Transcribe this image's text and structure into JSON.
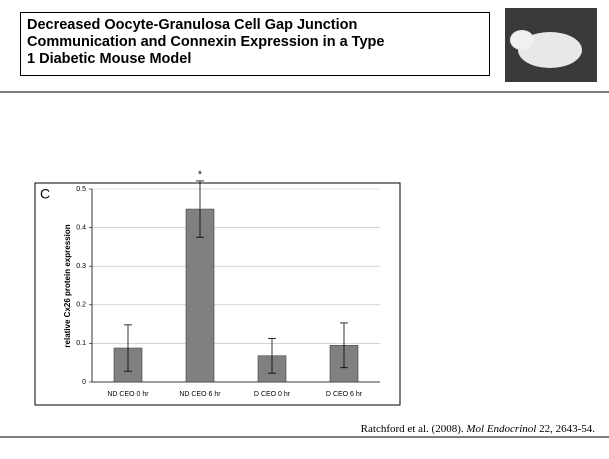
{
  "slide": {
    "title_lines": [
      "Decreased Oocyte-Granulosa Cell Gap Junction",
      "Communication and Connexin Expression in a Type",
      "1 Diabetic Mouse Model"
    ],
    "citation": [
      "Ratchford et al. (2008). ",
      "Mol Endocrinol",
      " 22, 2643-54."
    ]
  },
  "chart_data": {
    "type": "bar",
    "panel_label": "C",
    "y_label": "relative Cx26 protein expression",
    "categories": [
      "ND CEO 0 hr",
      "ND CEO 6 hr",
      "D CEO 0 hr",
      "D CEO 6 hr"
    ],
    "values": [
      0.088,
      0.448,
      0.068,
      0.095
    ],
    "errors": [
      0.06,
      0.073,
      0.045,
      0.058
    ],
    "annotations": [
      null,
      "*",
      null,
      null
    ],
    "color": "#808080",
    "ylim": [
      0,
      0.5
    ],
    "yticks": [
      0,
      0.1,
      0.2,
      0.3,
      0.4,
      0.5
    ],
    "grid": true
  }
}
